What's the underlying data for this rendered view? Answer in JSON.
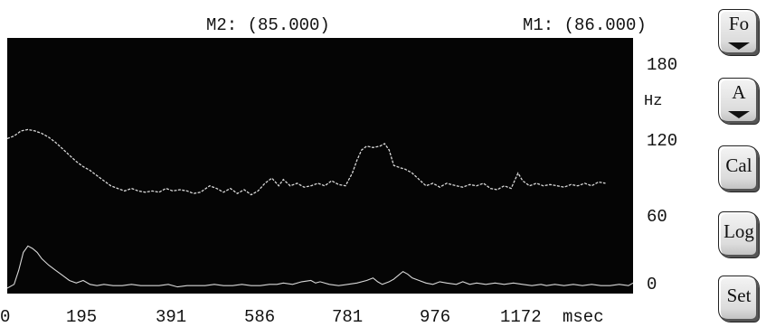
{
  "markers": {
    "m2": "M2: (85.000)",
    "m1": "M1: (86.000)"
  },
  "y_axis": {
    "ticks": [
      "180",
      "120",
      "60",
      "0"
    ],
    "unit": "Hz"
  },
  "x_axis": {
    "ticks": [
      "0",
      "195",
      "391",
      "586",
      "781",
      "976",
      "1172"
    ],
    "unit": "msec"
  },
  "buttons": {
    "fo": "Fo",
    "a": "A",
    "cal": "Cal",
    "log": "Log",
    "set": "Set"
  },
  "colors": {
    "plot_bg": "#050505",
    "trace": "#d8d8d8"
  },
  "icons": {
    "fo_arrow": "triangle-down-icon",
    "a_arrow": "triangle-down-icon"
  },
  "chart_data": {
    "type": "line",
    "xlabel": "msec",
    "ylabel": "Hz",
    "xlim": [
      0,
      1360
    ],
    "ylim": [
      0,
      190
    ],
    "series": [
      {
        "points": [
          [
            0,
            117
          ],
          [
            15,
            119
          ],
          [
            30,
            123
          ],
          [
            45,
            124
          ],
          [
            60,
            123
          ],
          [
            75,
            121
          ],
          [
            90,
            118
          ],
          [
            105,
            114
          ],
          [
            120,
            109
          ],
          [
            135,
            104
          ],
          [
            150,
            99
          ],
          [
            165,
            95
          ],
          [
            180,
            92
          ],
          [
            195,
            88
          ],
          [
            210,
            84
          ],
          [
            225,
            80
          ],
          [
            240,
            78
          ],
          [
            255,
            76
          ],
          [
            270,
            78
          ],
          [
            285,
            76
          ],
          [
            300,
            75
          ],
          [
            315,
            76
          ],
          [
            330,
            75
          ],
          [
            345,
            78
          ],
          [
            360,
            76
          ],
          [
            375,
            77
          ],
          [
            391,
            76
          ],
          [
            405,
            74
          ],
          [
            420,
            75
          ],
          [
            440,
            80
          ],
          [
            455,
            78
          ],
          [
            470,
            75
          ],
          [
            485,
            78
          ],
          [
            500,
            74
          ],
          [
            515,
            77
          ],
          [
            530,
            73
          ],
          [
            545,
            76
          ],
          [
            560,
            82
          ],
          [
            575,
            86
          ],
          [
            590,
            80
          ],
          [
            600,
            85
          ],
          [
            615,
            80
          ],
          [
            630,
            82
          ],
          [
            645,
            79
          ],
          [
            660,
            80
          ],
          [
            675,
            82
          ],
          [
            690,
            80
          ],
          [
            705,
            84
          ],
          [
            720,
            81
          ],
          [
            735,
            80
          ],
          [
            750,
            90
          ],
          [
            760,
            100
          ],
          [
            770,
            108
          ],
          [
            781,
            111
          ],
          [
            795,
            110
          ],
          [
            810,
            111
          ],
          [
            820,
            113
          ],
          [
            830,
            108
          ],
          [
            840,
            96
          ],
          [
            855,
            94
          ],
          [
            865,
            93
          ],
          [
            880,
            90
          ],
          [
            895,
            85
          ],
          [
            910,
            80
          ],
          [
            925,
            82
          ],
          [
            940,
            79
          ],
          [
            955,
            82
          ],
          [
            976,
            80
          ],
          [
            990,
            79
          ],
          [
            1005,
            81
          ],
          [
            1020,
            80
          ],
          [
            1035,
            82
          ],
          [
            1050,
            78
          ],
          [
            1065,
            77
          ],
          [
            1080,
            80
          ],
          [
            1095,
            78
          ],
          [
            1110,
            90
          ],
          [
            1120,
            84
          ],
          [
            1135,
            80
          ],
          [
            1150,
            82
          ],
          [
            1165,
            80
          ],
          [
            1180,
            81
          ],
          [
            1195,
            80
          ],
          [
            1210,
            79
          ],
          [
            1225,
            81
          ],
          [
            1240,
            80
          ],
          [
            1255,
            82
          ],
          [
            1270,
            80
          ],
          [
            1285,
            83
          ],
          [
            1300,
            82
          ]
        ]
      },
      {
        "points": [
          [
            0,
            0
          ],
          [
            15,
            3
          ],
          [
            25,
            14
          ],
          [
            35,
            28
          ],
          [
            45,
            33
          ],
          [
            55,
            31
          ],
          [
            65,
            28
          ],
          [
            75,
            23
          ],
          [
            90,
            18
          ],
          [
            105,
            14
          ],
          [
            120,
            10
          ],
          [
            135,
            6
          ],
          [
            150,
            4
          ],
          [
            165,
            6
          ],
          [
            180,
            3
          ],
          [
            195,
            2
          ],
          [
            210,
            3
          ],
          [
            230,
            2
          ],
          [
            250,
            2
          ],
          [
            270,
            3
          ],
          [
            290,
            2
          ],
          [
            310,
            2
          ],
          [
            330,
            2
          ],
          [
            350,
            3
          ],
          [
            370,
            1
          ],
          [
            391,
            2
          ],
          [
            410,
            2
          ],
          [
            430,
            2
          ],
          [
            450,
            3
          ],
          [
            470,
            2
          ],
          [
            490,
            2
          ],
          [
            510,
            3
          ],
          [
            530,
            2
          ],
          [
            550,
            2
          ],
          [
            570,
            3
          ],
          [
            586,
            3
          ],
          [
            600,
            4
          ],
          [
            620,
            3
          ],
          [
            640,
            5
          ],
          [
            660,
            6
          ],
          [
            670,
            4
          ],
          [
            680,
            5
          ],
          [
            700,
            3
          ],
          [
            720,
            2
          ],
          [
            740,
            3
          ],
          [
            760,
            4
          ],
          [
            781,
            6
          ],
          [
            795,
            8
          ],
          [
            805,
            5
          ],
          [
            815,
            3
          ],
          [
            830,
            5
          ],
          [
            840,
            7
          ],
          [
            850,
            10
          ],
          [
            860,
            13
          ],
          [
            870,
            11
          ],
          [
            880,
            8
          ],
          [
            895,
            6
          ],
          [
            910,
            4
          ],
          [
            925,
            3
          ],
          [
            940,
            5
          ],
          [
            955,
            4
          ],
          [
            976,
            3
          ],
          [
            990,
            5
          ],
          [
            1005,
            3
          ],
          [
            1020,
            4
          ],
          [
            1040,
            3
          ],
          [
            1060,
            4
          ],
          [
            1080,
            3
          ],
          [
            1100,
            4
          ],
          [
            1120,
            3
          ],
          [
            1140,
            2
          ],
          [
            1160,
            3
          ],
          [
            1172,
            2
          ],
          [
            1190,
            3
          ],
          [
            1210,
            2
          ],
          [
            1230,
            3
          ],
          [
            1250,
            2
          ],
          [
            1270,
            3
          ],
          [
            1290,
            2
          ],
          [
            1310,
            2
          ],
          [
            1330,
            3
          ],
          [
            1350,
            2
          ],
          [
            1360,
            4
          ]
        ]
      }
    ]
  }
}
